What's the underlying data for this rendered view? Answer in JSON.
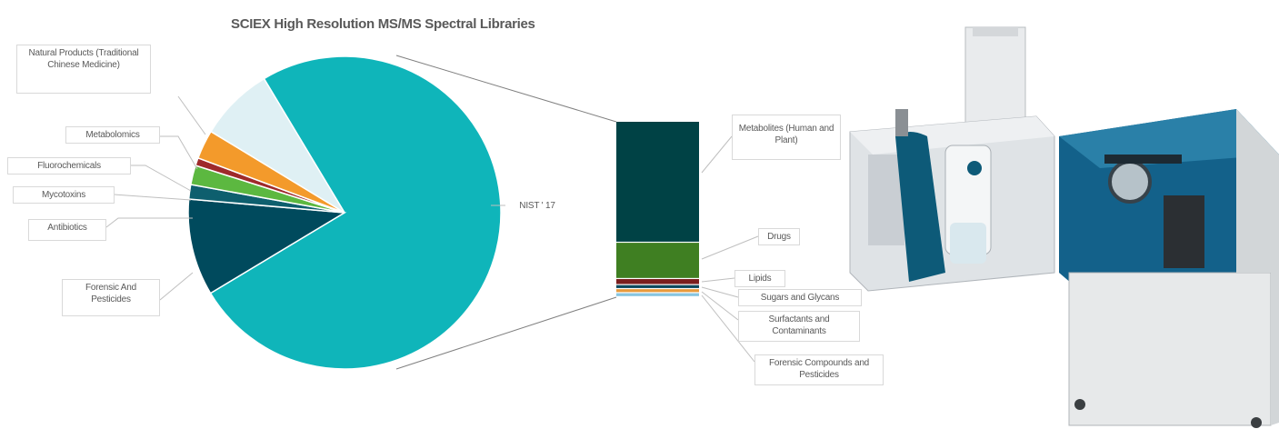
{
  "chart_data": [
    {
      "type": "pie",
      "title": "SCIEX High Resolution MS/MS Spectral Libraries",
      "slices": [
        {
          "label": "NIST ' 17",
          "value": 75.0,
          "color": "#0fb5ba"
        },
        {
          "label": "Forensic And Pesticides",
          "value": 10.0,
          "color": "#004a5d"
        },
        {
          "label": "Antibiotics",
          "value": 1.5,
          "color": "#0e5f6e"
        },
        {
          "label": "Mycotoxins",
          "value": 2.0,
          "color": "#5cb840"
        },
        {
          "label": "Fluorochemicals",
          "value": 0.8,
          "color": "#9e2a2b"
        },
        {
          "label": "Metabolomics",
          "value": 3.0,
          "color": "#f39a2b"
        },
        {
          "label": "Natural Products (Traditional Chinese Medicine)",
          "value": 7.7,
          "color": "#dff0f4"
        }
      ]
    },
    {
      "type": "bar",
      "stacked": true,
      "title": "",
      "series": [
        {
          "name": "Metabolites (Human and Plant)",
          "value": 60,
          "color": "#004245"
        },
        {
          "name": "Drugs",
          "value": 18,
          "color": "#3f7f22"
        },
        {
          "name": "Lipids",
          "value": 3,
          "color": "#7a1f1f"
        },
        {
          "name": "Sugars and Glycans",
          "value": 2,
          "color": "#0b4a5e"
        },
        {
          "name": "Surfactants and Contaminants",
          "value": 2,
          "color": "#e89a3c"
        },
        {
          "name": "Forensic Compounds and Pesticides",
          "value": 2,
          "color": "#87c5e0"
        }
      ]
    }
  ]
}
